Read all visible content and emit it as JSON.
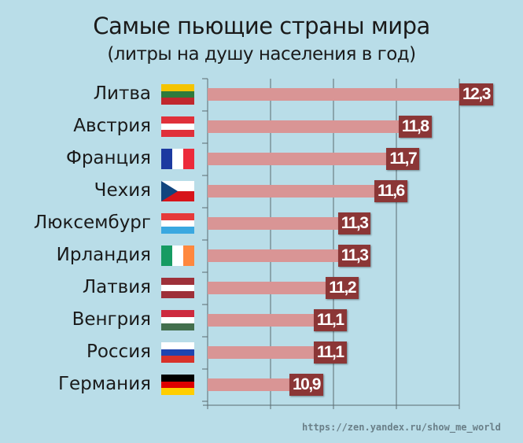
{
  "chart_data": {
    "type": "bar",
    "title": "Самые пьющие страны мира",
    "subtitle": "(литры на душу населения в год)",
    "categories": [
      "Литва",
      "Австрия",
      "Франция",
      "Чехия",
      "Люксембург",
      "Ирландия",
      "Латвия",
      "Венгрия",
      "Россия",
      "Германия"
    ],
    "values": [
      12.3,
      11.8,
      11.7,
      11.6,
      11.3,
      11.3,
      11.2,
      11.1,
      11.1,
      10.9
    ],
    "value_labels": [
      "12,3",
      "11,8",
      "11,7",
      "11,6",
      "11,3",
      "11,3",
      "11,2",
      "11,1",
      "11,1",
      "10,9"
    ],
    "flags": [
      {
        "dir": "h",
        "colors": [
          "#f5c400",
          "#2e7a3c",
          "#c1272d"
        ]
      },
      {
        "dir": "h",
        "colors": [
          "#e0303a",
          "#ffffff",
          "#e0303a"
        ]
      },
      {
        "dir": "v",
        "colors": [
          "#1c3aa0",
          "#ffffff",
          "#ec2a3a"
        ]
      },
      {
        "dir": "cz",
        "colors": [
          "#ffffff",
          "#d7141a",
          "#11457e"
        ]
      },
      {
        "dir": "h",
        "colors": [
          "#e63a3a",
          "#ffffff",
          "#3aa8e0"
        ]
      },
      {
        "dir": "v",
        "colors": [
          "#169b62",
          "#ffffff",
          "#ff883e"
        ]
      },
      {
        "dir": "h",
        "colors": [
          "#9e3039",
          "#ffffff",
          "#9e3039"
        ]
      },
      {
        "dir": "h",
        "colors": [
          "#cd2a3e",
          "#ffffff",
          "#436f4d"
        ]
      },
      {
        "dir": "h",
        "colors": [
          "#ffffff",
          "#1f45b0",
          "#d8322a"
        ]
      },
      {
        "dir": "h",
        "colors": [
          "#000000",
          "#dd0000",
          "#ffce00"
        ]
      }
    ],
    "xlim": [
      10.2,
      12.3
    ],
    "grid": true,
    "bar_color": "#d99595",
    "label_color": "#8b3636"
  },
  "watermark": "https://zen.yandex.ru/show_me_world"
}
